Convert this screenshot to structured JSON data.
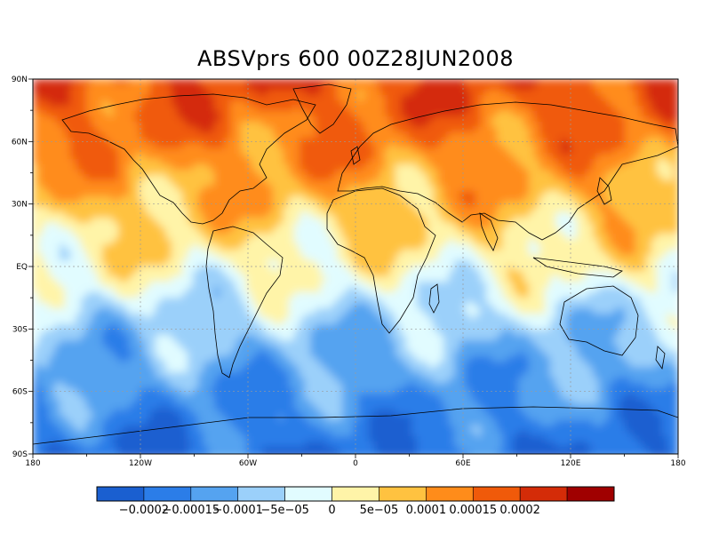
{
  "title": "ABSVprs 600  00Z28JUN2008",
  "lat_labels": [
    "90N",
    "60N",
    "30N",
    "EQ",
    "30S",
    "60S",
    "90S"
  ],
  "lon_labels": [
    "180",
    "120W",
    "60W",
    "0",
    "60E",
    "120E",
    "180"
  ],
  "colorbar": {
    "colors": [
      "#1a5fd0",
      "#2b7de8",
      "#55a3f0",
      "#9bd0fa",
      "#e1fcff",
      "#fff4a8",
      "#ffc240",
      "#ff8c1a",
      "#f05a0a",
      "#d42c08",
      "#a00000"
    ],
    "labels": [
      "−0.0002",
      "−0.00015",
      "−0.0001",
      "−5e−05",
      "0",
      "5e−05",
      "0.0001",
      "0.00015",
      "0.0002"
    ]
  },
  "chart_data": {
    "type": "heatmap",
    "title": "ABSVprs 600  00Z28JUN2008",
    "x_range": [
      -180,
      180
    ],
    "y_range": [
      -90,
      90
    ],
    "x_ticks": [
      "180",
      "120W",
      "60W",
      "0",
      "60E",
      "120E",
      "180"
    ],
    "y_ticks": [
      "90N",
      "60N",
      "30N",
      "EQ",
      "30S",
      "60S",
      "90S"
    ],
    "contour_levels": [
      -0.0002,
      -0.00015,
      -0.0001,
      -5e-05,
      0,
      5e-05,
      0.0001,
      0.00015,
      0.0002
    ],
    "grid": true,
    "zonal_pattern": [
      {
        "lat": 90,
        "value": 0.00019
      },
      {
        "lat": 60,
        "value": 0.00014
      },
      {
        "lat": 30,
        "value": 8e-05
      },
      {
        "lat": 0,
        "value": 1e-05
      },
      {
        "lat": -30,
        "value": -8e-05
      },
      {
        "lat": -60,
        "value": -0.00014
      },
      {
        "lat": -90,
        "value": -0.00019
      }
    ]
  }
}
